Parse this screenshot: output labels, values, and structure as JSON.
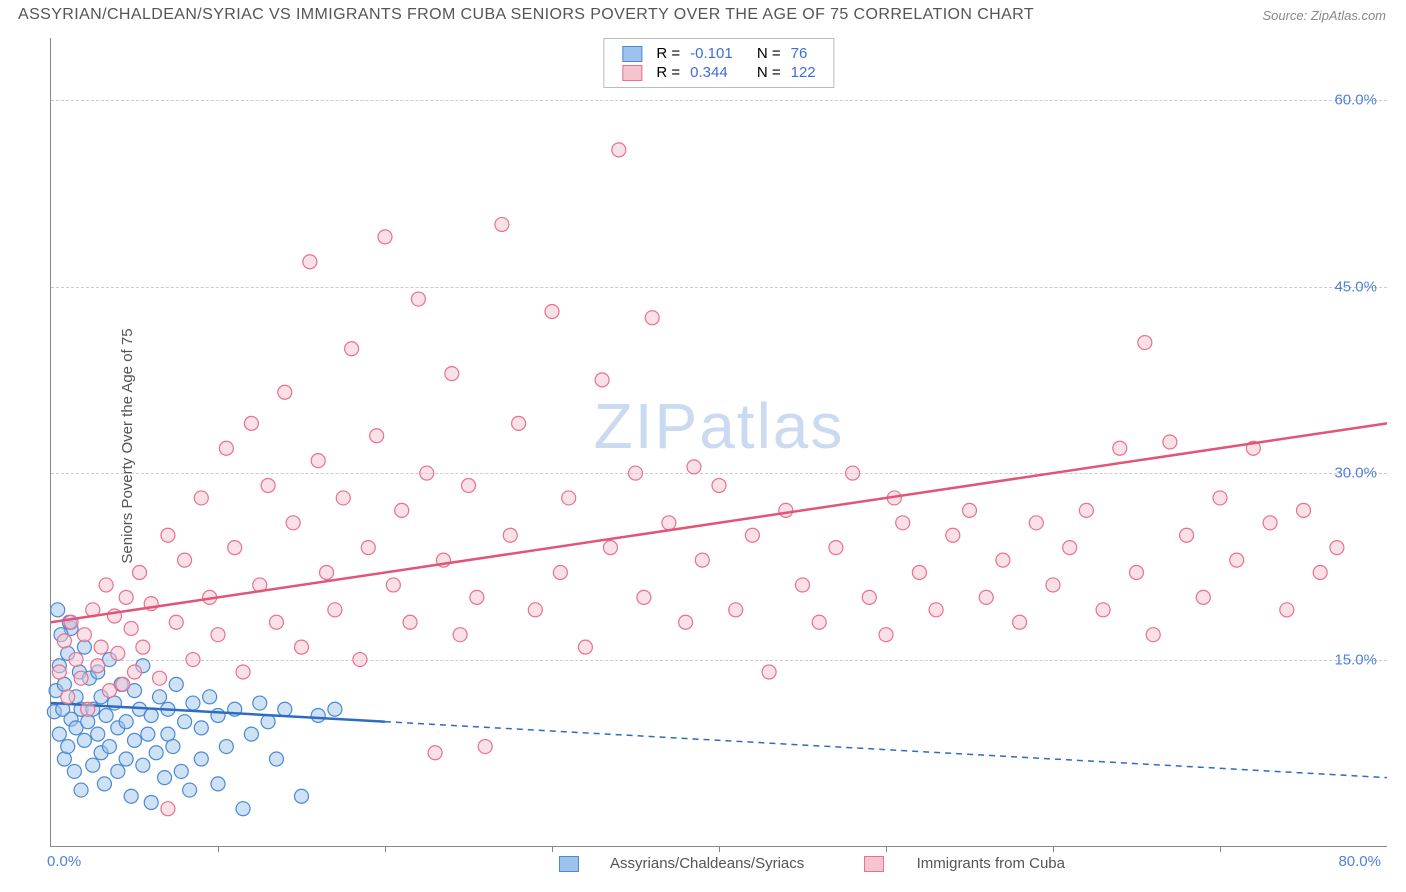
{
  "title": "ASSYRIAN/CHALDEAN/SYRIAC VS IMMIGRANTS FROM CUBA SENIORS POVERTY OVER THE AGE OF 75 CORRELATION CHART",
  "source": "Source: ZipAtlas.com",
  "y_axis_label": "Seniors Poverty Over the Age of 75",
  "watermark": "ZIPatlas",
  "chart": {
    "type": "scatter",
    "xlim": [
      0,
      80
    ],
    "ylim": [
      0,
      65
    ],
    "x_tick_start": "0.0%",
    "x_tick_end": "80.0%",
    "y_ticks": [
      {
        "v": 15,
        "label": "15.0%"
      },
      {
        "v": 30,
        "label": "30.0%"
      },
      {
        "v": 45,
        "label": "45.0%"
      },
      {
        "v": 60,
        "label": "60.0%"
      }
    ],
    "x_tick_positions": [
      10,
      20,
      30,
      40,
      50,
      60,
      70
    ],
    "grid_color": "#cccccc",
    "axis_color": "#888888",
    "background": "#ffffff",
    "marker_radius": 7,
    "marker_opacity": 0.5,
    "series": [
      {
        "name": "Assyrians/Chaldeans/Syriacs",
        "fill_color": "#9dc3ec",
        "stroke_color": "#4a8ad4",
        "line_color": "#2d6cc0",
        "R": "-0.101",
        "N": "76",
        "trend": {
          "x1": 0,
          "y1": 11.5,
          "x2": 20,
          "y2": 10,
          "extend_x2": 80,
          "extend_y2": 5.5
        },
        "points": [
          [
            0.2,
            10.8
          ],
          [
            0.3,
            12.5
          ],
          [
            0.5,
            9.0
          ],
          [
            0.5,
            14.5
          ],
          [
            0.7,
            11.0
          ],
          [
            0.8,
            7.0
          ],
          [
            0.8,
            13.0
          ],
          [
            1.0,
            15.5
          ],
          [
            1.0,
            8.0
          ],
          [
            1.2,
            10.2
          ],
          [
            1.2,
            17.5
          ],
          [
            1.4,
            6.0
          ],
          [
            1.5,
            12.0
          ],
          [
            1.5,
            9.5
          ],
          [
            1.7,
            14.0
          ],
          [
            1.8,
            11.0
          ],
          [
            1.8,
            4.5
          ],
          [
            2.0,
            16.0
          ],
          [
            2.0,
            8.5
          ],
          [
            2.2,
            10.0
          ],
          [
            2.3,
            13.5
          ],
          [
            2.5,
            6.5
          ],
          [
            2.5,
            11.0
          ],
          [
            2.8,
            9.0
          ],
          [
            2.8,
            14.0
          ],
          [
            3.0,
            7.5
          ],
          [
            3.0,
            12.0
          ],
          [
            3.2,
            5.0
          ],
          [
            3.3,
            10.5
          ],
          [
            3.5,
            8.0
          ],
          [
            3.5,
            15.0
          ],
          [
            3.8,
            11.5
          ],
          [
            4.0,
            6.0
          ],
          [
            4.0,
            9.5
          ],
          [
            4.2,
            13.0
          ],
          [
            4.5,
            7.0
          ],
          [
            4.5,
            10.0
          ],
          [
            4.8,
            4.0
          ],
          [
            5.0,
            12.5
          ],
          [
            5.0,
            8.5
          ],
          [
            5.3,
            11.0
          ],
          [
            5.5,
            6.5
          ],
          [
            5.5,
            14.5
          ],
          [
            5.8,
            9.0
          ],
          [
            6.0,
            10.5
          ],
          [
            6.0,
            3.5
          ],
          [
            6.3,
            7.5
          ],
          [
            6.5,
            12.0
          ],
          [
            6.8,
            5.5
          ],
          [
            7.0,
            9.0
          ],
          [
            7.0,
            11.0
          ],
          [
            7.3,
            8.0
          ],
          [
            7.5,
            13.0
          ],
          [
            7.8,
            6.0
          ],
          [
            8.0,
            10.0
          ],
          [
            8.3,
            4.5
          ],
          [
            8.5,
            11.5
          ],
          [
            9.0,
            7.0
          ],
          [
            9.0,
            9.5
          ],
          [
            9.5,
            12.0
          ],
          [
            10.0,
            5.0
          ],
          [
            10.0,
            10.5
          ],
          [
            10.5,
            8.0
          ],
          [
            11.0,
            11.0
          ],
          [
            11.5,
            3.0
          ],
          [
            12.0,
            9.0
          ],
          [
            12.5,
            11.5
          ],
          [
            13.0,
            10.0
          ],
          [
            13.5,
            7.0
          ],
          [
            14.0,
            11.0
          ],
          [
            15.0,
            4.0
          ],
          [
            16.0,
            10.5
          ],
          [
            17.0,
            11.0
          ],
          [
            0.4,
            19.0
          ],
          [
            1.1,
            18.0
          ],
          [
            0.6,
            17.0
          ]
        ]
      },
      {
        "name": "Immigrants from Cuba",
        "fill_color": "#f5c4cf",
        "stroke_color": "#e8718f",
        "line_color": "#e05578",
        "R": "0.344",
        "N": "122",
        "trend": {
          "x1": 0,
          "y1": 18,
          "x2": 80,
          "y2": 34
        },
        "points": [
          [
            0.5,
            14.0
          ],
          [
            0.8,
            16.5
          ],
          [
            1.0,
            12.0
          ],
          [
            1.2,
            18.0
          ],
          [
            1.5,
            15.0
          ],
          [
            1.8,
            13.5
          ],
          [
            2.0,
            17.0
          ],
          [
            2.2,
            11.0
          ],
          [
            2.5,
            19.0
          ],
          [
            2.8,
            14.5
          ],
          [
            3.0,
            16.0
          ],
          [
            3.3,
            21.0
          ],
          [
            3.5,
            12.5
          ],
          [
            3.8,
            18.5
          ],
          [
            4.0,
            15.5
          ],
          [
            4.3,
            13.0
          ],
          [
            4.5,
            20.0
          ],
          [
            4.8,
            17.5
          ],
          [
            5.0,
            14.0
          ],
          [
            5.3,
            22.0
          ],
          [
            5.5,
            16.0
          ],
          [
            6.0,
            19.5
          ],
          [
            6.5,
            13.5
          ],
          [
            7.0,
            25.0
          ],
          [
            7.0,
            3.0
          ],
          [
            7.5,
            18.0
          ],
          [
            8.0,
            23.0
          ],
          [
            8.5,
            15.0
          ],
          [
            9.0,
            28.0
          ],
          [
            9.5,
            20.0
          ],
          [
            10.0,
            17.0
          ],
          [
            10.5,
            32.0
          ],
          [
            11.0,
            24.0
          ],
          [
            11.5,
            14.0
          ],
          [
            12.0,
            34.0
          ],
          [
            12.5,
            21.0
          ],
          [
            13.0,
            29.0
          ],
          [
            13.5,
            18.0
          ],
          [
            14.0,
            36.5
          ],
          [
            14.5,
            26.0
          ],
          [
            15.0,
            16.0
          ],
          [
            15.5,
            47.0
          ],
          [
            16.0,
            31.0
          ],
          [
            16.5,
            22.0
          ],
          [
            17.0,
            19.0
          ],
          [
            17.5,
            28.0
          ],
          [
            18.0,
            40.0
          ],
          [
            18.5,
            15.0
          ],
          [
            19.0,
            24.0
          ],
          [
            19.5,
            33.0
          ],
          [
            20.0,
            49.0
          ],
          [
            20.5,
            21.0
          ],
          [
            21.0,
            27.0
          ],
          [
            21.5,
            18.0
          ],
          [
            22.0,
            44.0
          ],
          [
            22.5,
            30.0
          ],
          [
            23.0,
            7.5
          ],
          [
            23.5,
            23.0
          ],
          [
            24.0,
            38.0
          ],
          [
            24.5,
            17.0
          ],
          [
            25.0,
            29.0
          ],
          [
            25.5,
            20.0
          ],
          [
            26.0,
            8.0
          ],
          [
            27.0,
            50.0
          ],
          [
            27.5,
            25.0
          ],
          [
            28.0,
            34.0
          ],
          [
            29.0,
            19.0
          ],
          [
            30.0,
            43.0
          ],
          [
            30.5,
            22.0
          ],
          [
            31.0,
            28.0
          ],
          [
            32.0,
            16.0
          ],
          [
            33.0,
            37.5
          ],
          [
            33.5,
            24.0
          ],
          [
            34.0,
            56.0
          ],
          [
            35.0,
            30.0
          ],
          [
            35.5,
            20.0
          ],
          [
            36.0,
            42.5
          ],
          [
            37.0,
            26.0
          ],
          [
            38.0,
            18.0
          ],
          [
            38.5,
            30.5
          ],
          [
            39.0,
            23.0
          ],
          [
            40.0,
            29.0
          ],
          [
            41.0,
            19.0
          ],
          [
            42.0,
            25.0
          ],
          [
            43.0,
            14.0
          ],
          [
            44.0,
            27.0
          ],
          [
            45.0,
            21.0
          ],
          [
            46.0,
            18.0
          ],
          [
            47.0,
            24.0
          ],
          [
            48.0,
            30.0
          ],
          [
            49.0,
            20.0
          ],
          [
            50.0,
            17.0
          ],
          [
            50.5,
            28.0
          ],
          [
            51.0,
            26.0
          ],
          [
            52.0,
            22.0
          ],
          [
            53.0,
            19.0
          ],
          [
            54.0,
            25.0
          ],
          [
            55.0,
            27.0
          ],
          [
            56.0,
            20.0
          ],
          [
            57.0,
            23.0
          ],
          [
            58.0,
            18.0
          ],
          [
            59.0,
            26.0
          ],
          [
            60.0,
            21.0
          ],
          [
            61.0,
            24.0
          ],
          [
            62.0,
            27.0
          ],
          [
            63.0,
            19.0
          ],
          [
            64.0,
            32.0
          ],
          [
            65.0,
            22.0
          ],
          [
            65.5,
            40.5
          ],
          [
            66.0,
            17.0
          ],
          [
            67.0,
            32.5
          ],
          [
            68.0,
            25.0
          ],
          [
            69.0,
            20.0
          ],
          [
            70.0,
            28.0
          ],
          [
            71.0,
            23.0
          ],
          [
            72.0,
            32.0
          ],
          [
            73.0,
            26.0
          ],
          [
            74.0,
            19.0
          ],
          [
            75.0,
            27.0
          ],
          [
            76.0,
            22.0
          ],
          [
            77.0,
            24.0
          ]
        ]
      }
    ],
    "legend_bottom": [
      {
        "label": "Assyrians/Chaldeans/Syriacs",
        "fill": "#9dc3ec",
        "stroke": "#4a8ad4"
      },
      {
        "label": "Immigrants from Cuba",
        "fill": "#f5c4cf",
        "stroke": "#e8718f"
      }
    ]
  }
}
